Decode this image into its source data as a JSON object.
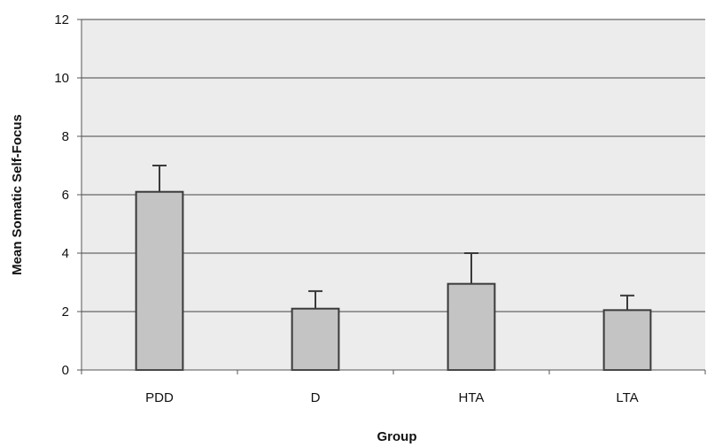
{
  "chart_data": {
    "type": "bar",
    "title": "",
    "xlabel": "Group",
    "ylabel": "Mean Somatic Self-Focus",
    "categories": [
      "PDD",
      "D",
      "HTA",
      "LTA"
    ],
    "values": [
      6.1,
      2.1,
      2.95,
      2.05
    ],
    "error_upper": [
      7.0,
      2.7,
      4.0,
      2.55
    ],
    "ylim": [
      0,
      12
    ],
    "yticks": [
      0,
      2,
      4,
      6,
      8,
      10,
      12
    ],
    "grid": true,
    "legend": "none",
    "colors": {
      "bar_fill": "#c4c4c4",
      "bar_stroke": "#3a3a3a",
      "plot_background": "#ececec",
      "gridline": "#444444"
    }
  }
}
